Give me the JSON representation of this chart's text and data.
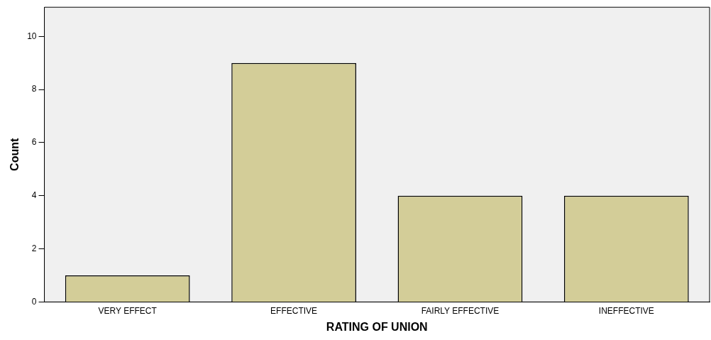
{
  "chart_data": {
    "type": "bar",
    "xlabel": "RATING OF UNION",
    "ylabel": "Count",
    "categories": [
      "VERY EFFECT",
      "EFFECTIVE",
      "FAIRLY EFFECTIVE",
      "INEFFECTIVE"
    ],
    "values": [
      1,
      9,
      4,
      4
    ],
    "color": "#d3cd98",
    "ylim": [
      0,
      11.1
    ],
    "yticks": [
      0,
      2,
      4,
      6,
      8,
      10
    ],
    "grid": false,
    "legend": false
  }
}
